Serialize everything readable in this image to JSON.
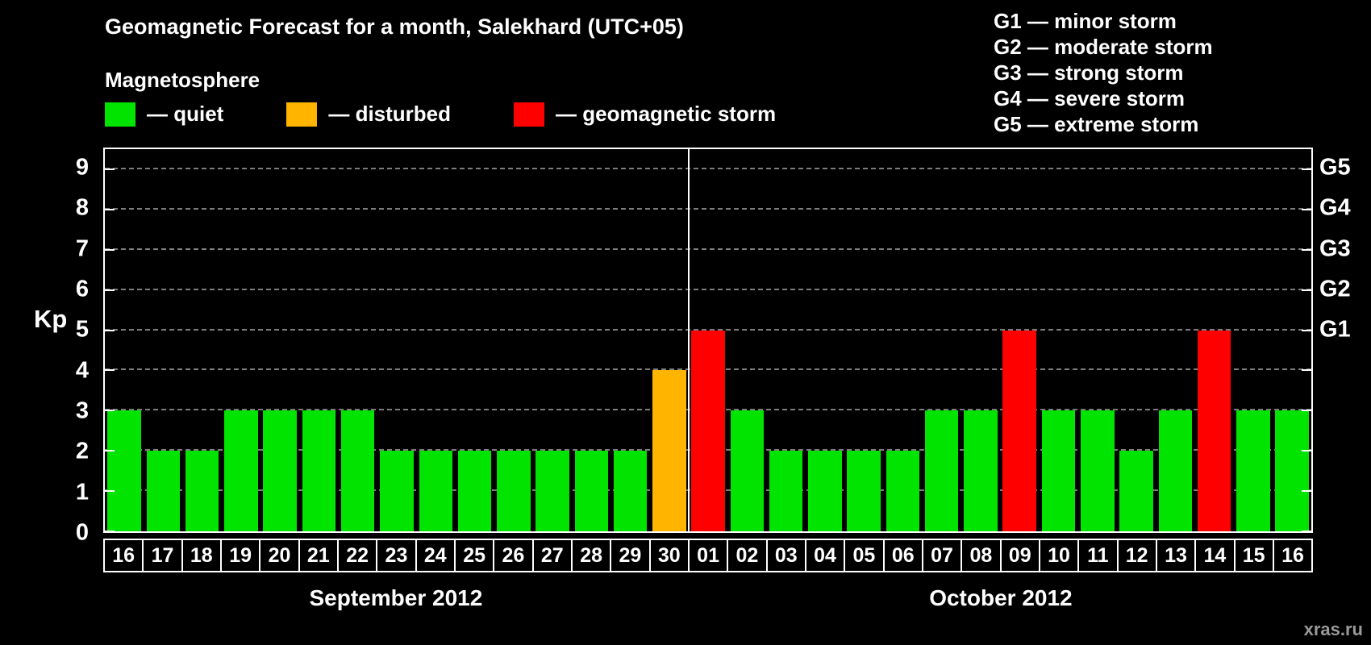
{
  "title": "Geomagnetic Forecast for a month, Salekhard (UTC+05)",
  "subtitle": "Magnetosphere",
  "legend": [
    {
      "label": "— quiet",
      "color": "#00e400",
      "status": "quiet"
    },
    {
      "label": "— disturbed",
      "color": "#ffb400",
      "status": "disturbed"
    },
    {
      "label": "— geomagnetic storm",
      "color": "#ff0000",
      "status": "storm"
    }
  ],
  "storm_scale": [
    "G1 — minor storm",
    "G2 — moderate storm",
    "G3 — strong storm",
    "G4 — severe storm",
    "G5 — extreme storm"
  ],
  "watermark": "xras.ru",
  "chart_data": {
    "type": "bar",
    "ylabel": "Kp",
    "ylim": [
      0,
      9.5
    ],
    "yticks": [
      0,
      1,
      2,
      3,
      4,
      5,
      6,
      7,
      8,
      9
    ],
    "gridlines": [
      1,
      2,
      3,
      4,
      5,
      6,
      7,
      8,
      9
    ],
    "right_axis": [
      {
        "label": "G1",
        "value": 5
      },
      {
        "label": "G2",
        "value": 6
      },
      {
        "label": "G3",
        "value": 7
      },
      {
        "label": "G4",
        "value": 8
      },
      {
        "label": "G5",
        "value": 9
      }
    ],
    "status_colors": {
      "quiet": "#00e400",
      "disturbed": "#ffb400",
      "storm": "#ff0000"
    },
    "months": [
      {
        "label": "September 2012",
        "bars": [
          {
            "day": "16",
            "kp": 3,
            "status": "quiet"
          },
          {
            "day": "17",
            "kp": 2,
            "status": "quiet"
          },
          {
            "day": "18",
            "kp": 2,
            "status": "quiet"
          },
          {
            "day": "19",
            "kp": 3,
            "status": "quiet"
          },
          {
            "day": "20",
            "kp": 3,
            "status": "quiet"
          },
          {
            "day": "21",
            "kp": 3,
            "status": "quiet"
          },
          {
            "day": "22",
            "kp": 3,
            "status": "quiet"
          },
          {
            "day": "23",
            "kp": 2,
            "status": "quiet"
          },
          {
            "day": "24",
            "kp": 2,
            "status": "quiet"
          },
          {
            "day": "25",
            "kp": 2,
            "status": "quiet"
          },
          {
            "day": "26",
            "kp": 2,
            "status": "quiet"
          },
          {
            "day": "27",
            "kp": 2,
            "status": "quiet"
          },
          {
            "day": "28",
            "kp": 2,
            "status": "quiet"
          },
          {
            "day": "29",
            "kp": 2,
            "status": "quiet"
          },
          {
            "day": "30",
            "kp": 4,
            "status": "disturbed"
          }
        ]
      },
      {
        "label": "October 2012",
        "bars": [
          {
            "day": "01",
            "kp": 5,
            "status": "storm"
          },
          {
            "day": "02",
            "kp": 3,
            "status": "quiet"
          },
          {
            "day": "03",
            "kp": 2,
            "status": "quiet"
          },
          {
            "day": "04",
            "kp": 2,
            "status": "quiet"
          },
          {
            "day": "05",
            "kp": 2,
            "status": "quiet"
          },
          {
            "day": "06",
            "kp": 2,
            "status": "quiet"
          },
          {
            "day": "07",
            "kp": 3,
            "status": "quiet"
          },
          {
            "day": "08",
            "kp": 3,
            "status": "quiet"
          },
          {
            "day": "09",
            "kp": 5,
            "status": "storm"
          },
          {
            "day": "10",
            "kp": 3,
            "status": "quiet"
          },
          {
            "day": "11",
            "kp": 3,
            "status": "quiet"
          },
          {
            "day": "12",
            "kp": 2,
            "status": "quiet"
          },
          {
            "day": "13",
            "kp": 3,
            "status": "quiet"
          },
          {
            "day": "14",
            "kp": 5,
            "status": "storm"
          },
          {
            "day": "15",
            "kp": 3,
            "status": "quiet"
          },
          {
            "day": "16",
            "kp": 3,
            "status": "quiet"
          }
        ]
      }
    ]
  }
}
